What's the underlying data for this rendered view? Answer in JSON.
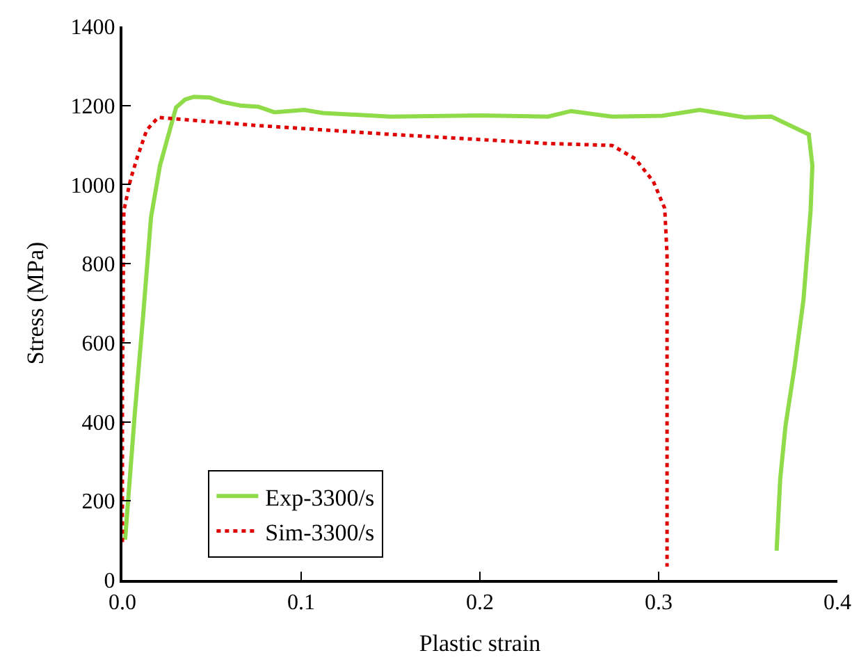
{
  "chart_data": {
    "type": "line",
    "xlabel": "Plastic strain",
    "ylabel": "Stress (MPa)",
    "xlim": [
      0,
      0.4
    ],
    "xticks": [
      {
        "value": 0,
        "label": "0.0"
      },
      0.1,
      0.2,
      0.3,
      0.4
    ],
    "ylim": [
      0,
      1400
    ],
    "yticks": [
      0,
      200,
      400,
      600,
      800,
      1000,
      1200,
      1400
    ],
    "legend": "bottom left",
    "series": [
      {
        "name": "Exp-3300/s",
        "color": "#8fdb4a",
        "line_style": "solid",
        "x": [
          0.0015,
          0.007,
          0.0115,
          0.016,
          0.021,
          0.03,
          0.035,
          0.04,
          0.049,
          0.056,
          0.066,
          0.076,
          0.085,
          0.1017,
          0.112,
          0.15,
          0.2,
          0.238,
          0.251,
          0.274,
          0.302,
          0.323,
          0.348,
          0.363,
          0.376,
          0.384,
          0.386,
          0.385,
          0.381,
          0.376,
          0.371,
          0.368,
          0.366
        ],
        "values": [
          102,
          425,
          663,
          917,
          1048,
          1195,
          1215,
          1222,
          1220,
          1209,
          1200,
          1197,
          1183,
          1189,
          1181,
          1172,
          1175,
          1172,
          1186,
          1172,
          1174,
          1189,
          1170,
          1172,
          1144,
          1127,
          1048,
          934,
          708,
          538,
          391,
          255,
          74
        ]
      },
      {
        "name": "Sim-3300/s",
        "color": "#e00000",
        "line_style": "dotted",
        "x": [
          0,
          0,
          0.0008,
          0.0046,
          0.0084,
          0.0136,
          0.02,
          0.0736,
          0.15,
          0.238,
          0.274,
          0.287,
          0.297,
          0.3034,
          0.3047,
          0.3047
        ],
        "values": [
          96,
          482,
          934,
          1014,
          1070,
          1138,
          1170,
          1150,
          1127,
          1104,
          1099,
          1065,
          1008,
          940,
          821,
          34
        ]
      }
    ]
  }
}
